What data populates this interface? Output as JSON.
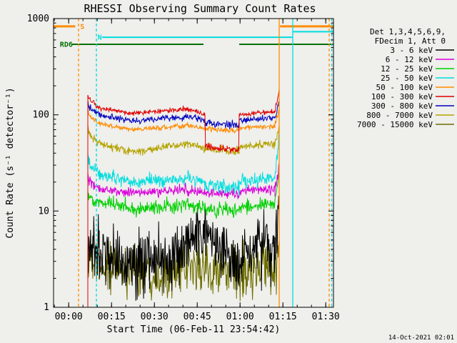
{
  "timestamp": "14-Oct-2021 02:01",
  "chart_data": {
    "type": "line",
    "title": "RHESSI Observing Summary Count Rates",
    "xlabel": "Start Time (06-Feb-11 23:54:42)",
    "ylabel": "Count Rate (s⁻¹ detector⁻¹)",
    "legend": {
      "header": [
        "Det 1,3,4,5,6,9,",
        "FDecim 1, Att 0"
      ],
      "entries": [
        {
          "label": "3 - 6 keV",
          "color": "#000000"
        },
        {
          "label": "6 - 12 keV",
          "color": "#d900d9"
        },
        {
          "label": "12 - 25 keV",
          "color": "#00d000"
        },
        {
          "label": "25 - 50 keV",
          "color": "#00dede"
        },
        {
          "label": "50 - 100 keV",
          "color": "#ff8c00"
        },
        {
          "label": "100 - 300 keV",
          "color": "#e00000"
        },
        {
          "label": "300 - 800 keV",
          "color": "#0000c0"
        },
        {
          "label": "800 - 7000 keV",
          "color": "#b5a300"
        },
        {
          "label": "7000 - 15000 keV",
          "color": "#6e6e00"
        }
      ]
    },
    "x_axis": {
      "t_min": 0,
      "t_max": 98,
      "minor_step": 5,
      "ticks": [
        {
          "t": 5.3,
          "label": "00:00"
        },
        {
          "t": 20.3,
          "label": "00:15"
        },
        {
          "t": 35.3,
          "label": "00:30"
        },
        {
          "t": 50.3,
          "label": "00:45"
        },
        {
          "t": 65.3,
          "label": "01:00"
        },
        {
          "t": 80.3,
          "label": "01:15"
        },
        {
          "t": 95.3,
          "label": "01:30"
        }
      ]
    },
    "y_axis": {
      "scale": "log",
      "min": 1,
      "max": 1000,
      "ticks": [
        {
          "v": 1,
          "label": "1"
        },
        {
          "v": 10,
          "label": "10"
        },
        {
          "v": 100,
          "label": "100"
        },
        {
          "v": 1000,
          "label": "1000"
        }
      ]
    },
    "series": [
      {
        "name": "7000 - 15000 keV",
        "color": "#6e6e00",
        "segments": [
          [
            12,
            16,
            3.2,
            2.6,
            0.3
          ],
          [
            16,
            40,
            2.6,
            2.3,
            0.32
          ],
          [
            40,
            55,
            2.4,
            2.6,
            0.32
          ],
          [
            55,
            65,
            2.4,
            2.2,
            0.33
          ],
          [
            65,
            77.5,
            2.4,
            2.6,
            0.32
          ],
          [
            77.5,
            79,
            2.6,
            4,
            0.3
          ]
        ]
      },
      {
        "name": "3 - 6 keV",
        "color": "#000000",
        "segments": [
          [
            12,
            16,
            5,
            3.5,
            0.35
          ],
          [
            16,
            28,
            3.5,
            2.8,
            0.38
          ],
          [
            28,
            40,
            2.8,
            3.2,
            0.4
          ],
          [
            40,
            50,
            3.5,
            5.5,
            0.4
          ],
          [
            50,
            58,
            6,
            5,
            0.38
          ],
          [
            58,
            65,
            4,
            2.8,
            0.4
          ],
          [
            65,
            72,
            3,
            4.5,
            0.42
          ],
          [
            72,
            77.5,
            4.5,
            3.5,
            0.4
          ],
          [
            77.5,
            79,
            4,
            9,
            0.35
          ]
        ]
      },
      {
        "name": "12 - 25 keV",
        "color": "#00d000",
        "segments": [
          [
            12,
            12.3,
            17,
            14,
            0.05
          ],
          [
            12.3,
            16,
            14,
            12,
            0.09
          ],
          [
            16,
            28,
            12,
            10.5,
            0.09
          ],
          [
            28,
            47,
            10.5,
            11.5,
            0.09
          ],
          [
            47,
            53,
            11.5,
            11,
            0.09
          ],
          [
            53,
            65,
            10.5,
            10,
            0.1
          ],
          [
            65,
            77.5,
            11,
            12,
            0.09
          ],
          [
            77.5,
            79,
            12,
            26,
            0.09
          ]
        ]
      },
      {
        "name": "6 - 12 keV",
        "color": "#d900d9",
        "segments": [
          [
            12,
            12.3,
            24,
            20,
            0.04
          ],
          [
            12.3,
            16,
            20,
            17,
            0.06
          ],
          [
            16,
            28,
            17,
            15.5,
            0.06
          ],
          [
            28,
            47,
            15.5,
            16.5,
            0.06
          ],
          [
            47,
            53,
            16.5,
            16,
            0.06
          ],
          [
            53,
            65,
            15.5,
            15,
            0.07
          ],
          [
            65,
            77.5,
            16,
            17,
            0.06
          ],
          [
            77.5,
            79,
            17,
            28,
            0.07
          ]
        ]
      },
      {
        "name": "25 - 50 keV",
        "color": "#00dede",
        "segments": [
          [
            12,
            12.3,
            40,
            32,
            0.04
          ],
          [
            12.3,
            16,
            32,
            24,
            0.08
          ],
          [
            16,
            28,
            24,
            20,
            0.08
          ],
          [
            28,
            47,
            20,
            22,
            0.08
          ],
          [
            47,
            53,
            22,
            20,
            0.08
          ],
          [
            53,
            65,
            19,
            17,
            0.09
          ],
          [
            65,
            77.5,
            20,
            22,
            0.08
          ],
          [
            77.5,
            79,
            22,
            60,
            0.08
          ]
        ]
      },
      {
        "name": "800 - 7000 keV",
        "color": "#b5a300",
        "segments": [
          [
            12,
            12.3,
            80,
            65,
            0.03
          ],
          [
            12.3,
            16,
            65,
            50,
            0.05
          ],
          [
            16,
            28,
            50,
            41,
            0.05
          ],
          [
            28,
            47,
            41,
            50,
            0.05
          ],
          [
            47,
            53,
            50,
            46,
            0.05
          ],
          [
            53,
            65,
            45,
            41,
            0.06
          ],
          [
            65,
            77.5,
            46,
            50,
            0.05
          ],
          [
            77.5,
            79,
            50,
            80,
            0.05
          ]
        ]
      },
      {
        "name": "300 - 800 keV",
        "color": "#0000c0",
        "segments": [
          [
            12,
            12.3,
            140,
            122,
            0.02
          ],
          [
            12.3,
            16,
            122,
            100,
            0.04
          ],
          [
            16,
            28,
            100,
            86,
            0.04
          ],
          [
            28,
            47,
            86,
            95,
            0.04
          ],
          [
            47,
            53,
            95,
            88,
            0.04
          ],
          [
            53,
            65,
            82,
            78,
            0.05
          ],
          [
            65,
            77.5,
            88,
            92,
            0.04
          ],
          [
            77.5,
            79,
            92,
            135,
            0.04
          ]
        ]
      },
      {
        "name": "50 - 100 keV",
        "color": "#ff8c00",
        "segments": [
          [
            12,
            12.3,
            118,
            100,
            0.02
          ],
          [
            12.3,
            16,
            100,
            80,
            0.03
          ],
          [
            16,
            28,
            80,
            70,
            0.03
          ],
          [
            28,
            47,
            70,
            77,
            0.03
          ],
          [
            47,
            53,
            77,
            72,
            0.03
          ],
          [
            53,
            65,
            71,
            69,
            0.035
          ],
          [
            65,
            77.5,
            73,
            77,
            0.03
          ],
          [
            77.5,
            79,
            77,
            115,
            0.04
          ]
        ]
      },
      {
        "name": "100 - 300 keV",
        "color": "#e00000",
        "segments": [
          [
            12,
            12.3,
            165,
            148,
            0.02
          ],
          [
            12.3,
            16,
            148,
            118,
            0.03
          ],
          [
            16,
            28,
            118,
            103,
            0.03
          ],
          [
            28,
            47,
            103,
            116,
            0.03
          ],
          [
            47,
            53,
            116,
            100,
            0.03
          ],
          [
            53,
            53.2,
            100,
            46,
            0.02
          ],
          [
            53.2,
            64.8,
            46,
            43,
            0.04
          ],
          [
            64.8,
            65,
            43,
            100,
            0.02
          ],
          [
            65,
            77.5,
            100,
            107,
            0.03
          ],
          [
            77.5,
            79,
            107,
            170,
            0.04
          ]
        ]
      }
    ],
    "overlays": {
      "horizontal": [
        {
          "name": "flag-line-S",
          "color": "#ff8c00",
          "value": 830,
          "width": 3,
          "segments": [
            [
              0,
              7.6
            ],
            [
              79.3,
              98
            ]
          ]
        },
        {
          "name": "flag-line-N",
          "color": "#00dede",
          "value": 640,
          "width": 2,
          "segments": [
            [
              17,
              83.6
            ]
          ]
        },
        {
          "name": "flag-line-N-right",
          "color": "#00dede",
          "value": 730,
          "width": 2,
          "segments": [
            [
              83.8,
              98
            ]
          ]
        },
        {
          "name": "flag-line-RD6",
          "color": "#007000",
          "value": 540,
          "width": 2,
          "segments": [
            [
              6.3,
              52.5
            ],
            [
              65,
              98
            ]
          ]
        }
      ],
      "vertical": [
        {
          "name": "vline-orange-dashed-left",
          "color": "#ff8c00",
          "t": 8.75,
          "dashed": true
        },
        {
          "name": "vline-cyan-dashed-left",
          "color": "#00dede",
          "t": 15,
          "dashed": true
        },
        {
          "name": "vline-orange-solid",
          "color": "#ff8c00",
          "t": 79,
          "dashed": false
        },
        {
          "name": "vline-cyan-solid",
          "color": "#00dede",
          "t": 83.75,
          "dashed": false
        },
        {
          "name": "vline-orange-dashed-right",
          "color": "#ff8c00",
          "t": 96.5,
          "dashed": true
        },
        {
          "name": "vline-cyan-dashed-right",
          "color": "#00dede",
          "t": 97.4,
          "dashed": true
        }
      ],
      "labels": [
        {
          "text": "S",
          "color": "#ff8c00",
          "t": 9.3,
          "value": 830
        },
        {
          "text": "N",
          "color": "#00dede",
          "t": 15.4,
          "value": 640
        },
        {
          "text": "RD6",
          "color": "#007000",
          "t": 2.2,
          "value": 540
        }
      ]
    }
  }
}
